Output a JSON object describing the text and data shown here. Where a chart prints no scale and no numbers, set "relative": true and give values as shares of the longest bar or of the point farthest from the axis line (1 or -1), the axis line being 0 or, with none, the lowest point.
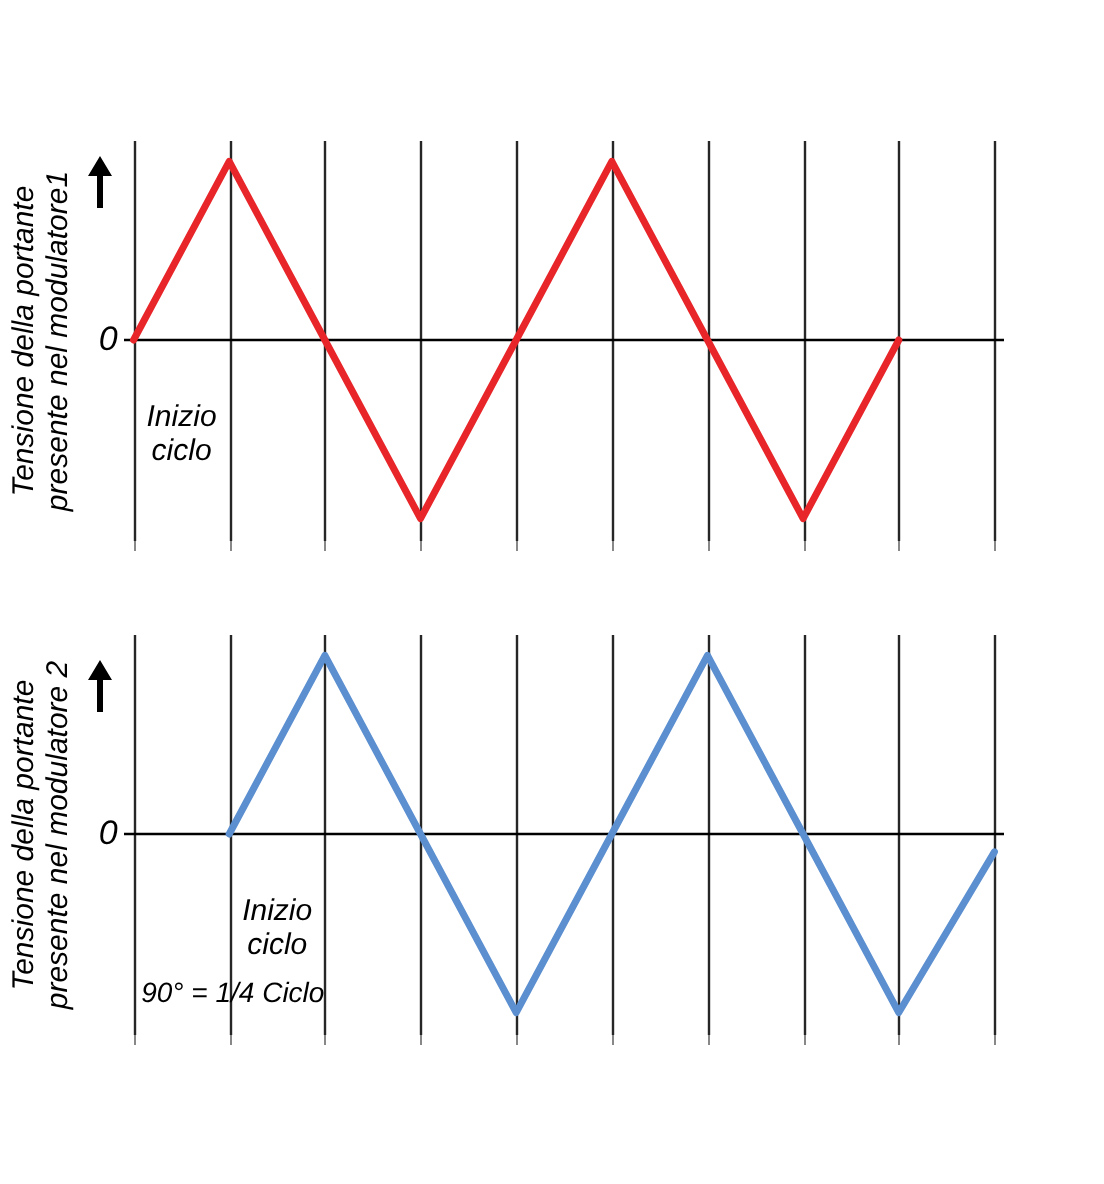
{
  "chart_data": [
    {
      "type": "line",
      "relative": true,
      "ylabel": "Tensione della portante presente nel modulatore1",
      "categories": [
        null,
        null,
        null,
        null,
        null,
        null,
        null,
        null,
        null,
        null
      ],
      "series": [
        {
          "color": "#e8262a",
          "values": [
            0,
            1,
            0,
            -1,
            0,
            1,
            0,
            -1,
            0,
            null
          ]
        }
      ],
      "grid": "x",
      "line_style": "solid",
      "marker": "none",
      "annotations": [
        "0",
        "Inizio ciclo"
      ]
    },
    {
      "type": "line",
      "relative": true,
      "ylabel": "Tensione della portante presente nel modulatore 2",
      "categories": [
        null,
        null,
        null,
        null,
        null,
        null,
        null,
        null,
        null,
        null
      ],
      "series": [
        {
          "color": "#5b8fd0",
          "values": [
            null,
            0,
            1,
            0,
            -1,
            0,
            1,
            0,
            -1,
            -0.1
          ]
        }
      ],
      "grid": "x",
      "line_style": "solid",
      "marker": "none",
      "annotations": [
        "0",
        "Inizio ciclo",
        "90° = 1/4 Ciclo"
      ]
    }
  ]
}
